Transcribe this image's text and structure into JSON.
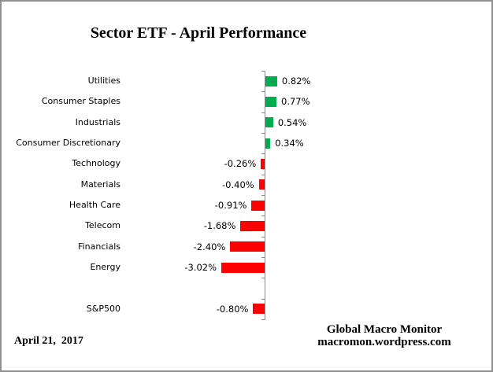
{
  "title": "Sector ETF - April Performance",
  "footer": {
    "date": "April 21,  2017",
    "credit_line1": "Global Macro Monitor",
    "credit_line2": "macromon.wordpress.com"
  },
  "colors": {
    "positive_bar": "#00AC50",
    "negative_bar": "#FF0000",
    "axis": "#898989",
    "border": "#909090",
    "text": "#000000"
  },
  "chart_data": {
    "type": "bar",
    "orientation": "horizontal",
    "title": "Sector ETF - April Performance",
    "unit": "percent",
    "xlim": [
      -3.5,
      1.0
    ],
    "grid": false,
    "legend": false,
    "zero_axis": true,
    "categories": [
      "Utilities",
      "Consumer Staples",
      "Industrials",
      "Consumer Discretionary",
      "Technology",
      "Materials",
      "Health Care",
      "Telecom",
      "Financials",
      "Energy",
      "",
      "S&P500"
    ],
    "values": [
      0.82,
      0.77,
      0.54,
      0.34,
      -0.26,
      -0.4,
      -0.91,
      -1.68,
      -2.4,
      -3.02,
      null,
      -0.8
    ],
    "labels": [
      "0.82%",
      "0.77%",
      "0.54%",
      "0.34%",
      "-0.26%",
      "-0.40%",
      "-0.91%",
      "-1.68%",
      "-2.40%",
      "-3.02%",
      "",
      "-0.80%"
    ]
  }
}
